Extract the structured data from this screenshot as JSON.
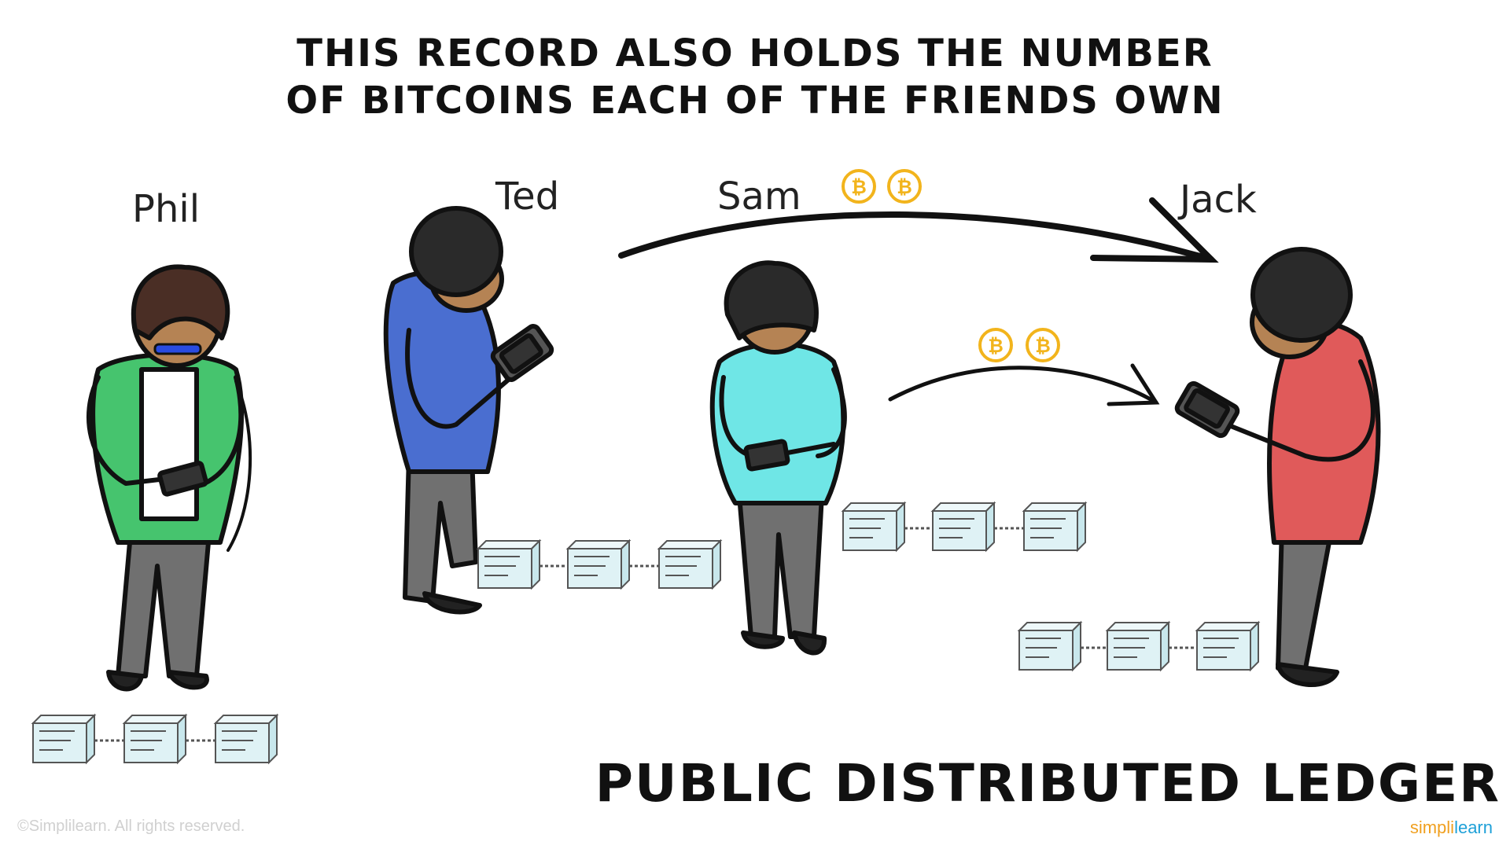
{
  "headline": {
    "line1": "THIS RECORD ALSO HOLDS THE NUMBER",
    "line2": "OF BITCOINS EACH OF THE FRIENDS OWN"
  },
  "people": [
    {
      "name": "Phil",
      "shirt_color": "#46c46e"
    },
    {
      "name": "Ted",
      "shirt_color": "#4a6ed0"
    },
    {
      "name": "Sam",
      "shirt_color": "#6fe6e6"
    },
    {
      "name": "Jack",
      "shirt_color": "#e05a5a"
    }
  ],
  "coin_symbol": "₿",
  "coin_color": "#f2b41c",
  "ledger_color": "#dff2f5",
  "footer": {
    "title": "PUBLIC DISTRIBUTED LEDGER",
    "copyright": "©Simplilearn. All rights reserved.",
    "brand_part1": "simpli",
    "brand_part2": "learn"
  }
}
